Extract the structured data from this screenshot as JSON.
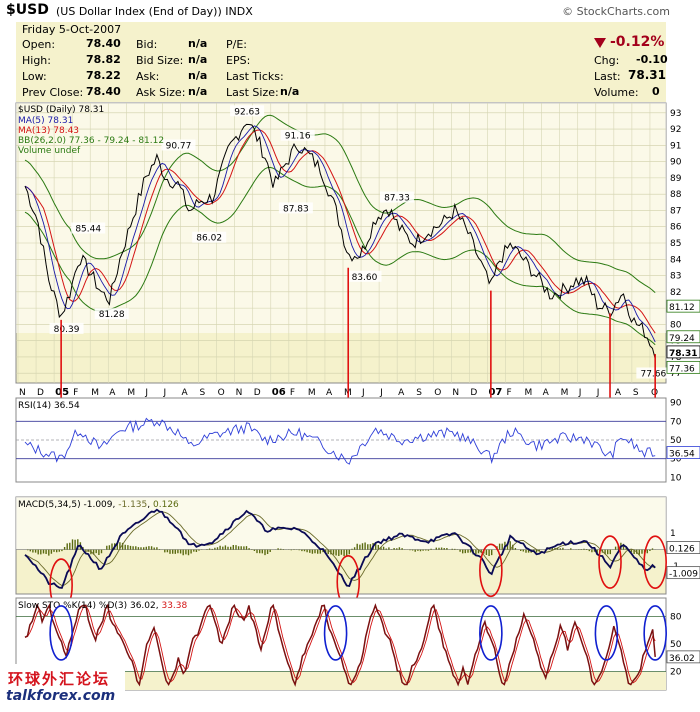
{
  "header": {
    "symbol": "$USD",
    "subtitle": "(US Dollar Index (End of Day))",
    "exchange": "INDX",
    "brand": "© StockCharts.com"
  },
  "quote": {
    "date": "Friday 5-Oct-2007",
    "open_label": "Open:",
    "open": "78.40",
    "high_label": "High:",
    "high": "78.82",
    "low_label": "Low:",
    "low": "78.22",
    "prev_label": "Prev Close:",
    "prev": "78.40",
    "bid_label": "Bid:",
    "bid": "n/a",
    "bidsize_label": "Bid Size:",
    "bidsize": "n/a",
    "ask_label": "Ask:",
    "ask": "n/a",
    "asksize_label": "Ask Size:",
    "asksize": "n/a",
    "pe_label": "P/E:",
    "eps_label": "EPS:",
    "lastticks_label": "Last Ticks:",
    "lastsize_label": "Last Size:",
    "lastsize": "n/a",
    "pct_change": "-0.12%",
    "chg_label": "Chg:",
    "chg": "-0.10",
    "last_label": "Last:",
    "last": "78.31",
    "vol_label": "Volume:",
    "vol": "0"
  },
  "colors": {
    "price_bg": "#f5f2cc",
    "panel_bg": "#f5f2cc",
    "price": "#000000",
    "ma5": "#1a1aa8",
    "ma13": "#d41414",
    "bb": "#2b7a12",
    "rsi": "#2f3fd8",
    "macd": "#0a0a55",
    "macd_sig": "#6b6b2a",
    "hist": "#5a6a10",
    "sto_k": "#7a1010",
    "sto_d": "#d41414",
    "marker": "#e01010",
    "circle_red": "#e01010",
    "circle_blue": "#1020d0"
  },
  "chart_data": {
    "type": "line",
    "legend": {
      "main": "$USD (Daily) 78.31",
      "ma5": "MA(5) 78.31",
      "ma13": "MA(13) 78.43",
      "bb": "BB(26,2.0) 77.36 - 79.24 - 81.12",
      "vol": "Volume undef"
    },
    "y_ticks": [
      "93",
      "92",
      "91",
      "90",
      "89",
      "88",
      "87",
      "86",
      "85",
      "84",
      "83",
      "82",
      "81",
      "80",
      "79",
      "78",
      "77"
    ],
    "ylim": [
      76.4,
      93.6
    ],
    "x_months": [
      {
        "t": "N",
        "i": 0
      },
      {
        "t": "D",
        "i": 1
      },
      {
        "t": "05",
        "i": 2,
        "bold": true
      },
      {
        "t": "F",
        "i": 3
      },
      {
        "t": "M",
        "i": 4
      },
      {
        "t": "A",
        "i": 5
      },
      {
        "t": "M",
        "i": 6
      },
      {
        "t": "J",
        "i": 7
      },
      {
        "t": "J",
        "i": 8
      },
      {
        "t": "A",
        "i": 9
      },
      {
        "t": "S",
        "i": 10
      },
      {
        "t": "O",
        "i": 11
      },
      {
        "t": "N",
        "i": 12
      },
      {
        "t": "D",
        "i": 13
      },
      {
        "t": "06",
        "i": 14,
        "bold": true
      },
      {
        "t": "F",
        "i": 15
      },
      {
        "t": "M",
        "i": 16
      },
      {
        "t": "A",
        "i": 17
      },
      {
        "t": "M",
        "i": 18
      },
      {
        "t": "J",
        "i": 19
      },
      {
        "t": "J",
        "i": 20
      },
      {
        "t": "A",
        "i": 21
      },
      {
        "t": "S",
        "i": 22
      },
      {
        "t": "O",
        "i": 23
      },
      {
        "t": "N",
        "i": 24
      },
      {
        "t": "D",
        "i": 25
      },
      {
        "t": "07",
        "i": 26,
        "bold": true
      },
      {
        "t": "F",
        "i": 27
      },
      {
        "t": "M",
        "i": 28
      },
      {
        "t": "A",
        "i": 29
      },
      {
        "t": "M",
        "i": 30
      },
      {
        "t": "J",
        "i": 31
      },
      {
        "t": "J",
        "i": 32
      },
      {
        "t": "A",
        "i": 33
      },
      {
        "t": "S",
        "i": 34
      },
      {
        "t": "O",
        "i": 35
      }
    ],
    "price_keypoints": [
      [
        0,
        88.5
      ],
      [
        0.7,
        86.4
      ],
      [
        1.3,
        82.8
      ],
      [
        2.0,
        80.5
      ],
      [
        2.5,
        82.0
      ],
      [
        3.0,
        84.2
      ],
      [
        3.6,
        83.2
      ],
      [
        4.2,
        82.0
      ],
      [
        4.7,
        81.5
      ],
      [
        5.3,
        84.2
      ],
      [
        6.0,
        86.7
      ],
      [
        6.7,
        89.1
      ],
      [
        7.3,
        90.2
      ],
      [
        7.8,
        89.0
      ],
      [
        8.5,
        88.6
      ],
      [
        9.1,
        86.9
      ],
      [
        9.7,
        87.6
      ],
      [
        10.4,
        87.8
      ],
      [
        11.3,
        90.8
      ],
      [
        12.3,
        92.6
      ],
      [
        12.8,
        91.6
      ],
      [
        13.3,
        90.3
      ],
      [
        13.8,
        88.5
      ],
      [
        14.4,
        89.8
      ],
      [
        15.1,
        91.1
      ],
      [
        15.8,
        90.3
      ],
      [
        16.4,
        89.5
      ],
      [
        17.2,
        87.1
      ],
      [
        17.9,
        84.3
      ],
      [
        18.6,
        84.3
      ],
      [
        19.4,
        86.5
      ],
      [
        20.1,
        87.2
      ],
      [
        20.8,
        85.8
      ],
      [
        21.5,
        85.0
      ],
      [
        22.3,
        85.7
      ],
      [
        23.1,
        86.2
      ],
      [
        23.8,
        87.0
      ],
      [
        24.5,
        85.7
      ],
      [
        25.3,
        83.6
      ],
      [
        25.8,
        82.2
      ],
      [
        26.3,
        84.0
      ],
      [
        26.9,
        84.9
      ],
      [
        27.6,
        84.0
      ],
      [
        28.3,
        83.0
      ],
      [
        29.1,
        81.8
      ],
      [
        29.8,
        82.1
      ],
      [
        30.5,
        82.7
      ],
      [
        31.1,
        82.6
      ],
      [
        31.7,
        81.2
      ],
      [
        32.4,
        80.8
      ],
      [
        33.1,
        82.0
      ],
      [
        33.7,
        80.2
      ],
      [
        34.3,
        79.6
      ],
      [
        34.9,
        78.31
      ]
    ],
    "price_labels": [
      {
        "v": "92.63",
        "i": 12.3,
        "y": 92.6
      },
      {
        "v": "91.16",
        "i": 15.1,
        "y": 91.1
      },
      {
        "v": "90.77",
        "i": 8.5,
        "y": 90.5
      },
      {
        "v": "87.33",
        "i": 20.6,
        "y": 87.3
      },
      {
        "v": "87.83",
        "i": 15.0,
        "y": 87.8
      },
      {
        "v": "86.02",
        "i": 10.2,
        "y": 86.0
      },
      {
        "v": "85.44",
        "i": 3.5,
        "y": 85.4
      },
      {
        "v": "83.60",
        "i": 18.8,
        "y": 83.6
      },
      {
        "v": "81.28",
        "i": 4.8,
        "y": 81.3
      },
      {
        "v": "80.39",
        "i": 2.3,
        "y": 80.4
      },
      {
        "v": "77.66",
        "i": 34.8,
        "y": 77.66
      }
    ],
    "price_tags": [
      {
        "v": "81.12",
        "y": 81.12
      },
      {
        "v": "79.24",
        "y": 79.24
      },
      {
        "v": "78.31",
        "y": 78.31
      },
      {
        "v": "77.36",
        "y": 77.36
      }
    ],
    "markers": [
      2.0,
      17.9,
      25.8,
      32.4,
      34.9
    ],
    "rsi": {
      "legend": "RSI(14) 36.54",
      "ticks": [
        "90",
        "70",
        "50",
        "30",
        "10"
      ],
      "ylim": [
        5,
        95
      ],
      "levels": [
        70,
        50,
        30
      ],
      "tag": "36.54",
      "keypoints": [
        [
          0,
          45
        ],
        [
          1.3,
          35
        ],
        [
          2.0,
          30
        ],
        [
          3.0,
          62
        ],
        [
          4.2,
          40
        ],
        [
          5.3,
          62
        ],
        [
          6.7,
          68
        ],
        [
          7.3,
          72
        ],
        [
          8.5,
          58
        ],
        [
          9.1,
          43
        ],
        [
          10.4,
          55
        ],
        [
          12.3,
          64
        ],
        [
          13.3,
          50
        ],
        [
          15.1,
          58
        ],
        [
          16.4,
          46
        ],
        [
          17.9,
          27
        ],
        [
          19.4,
          62
        ],
        [
          20.8,
          50
        ],
        [
          22.3,
          55
        ],
        [
          23.8,
          58
        ],
        [
          25.3,
          40
        ],
        [
          25.8,
          30
        ],
        [
          26.9,
          60
        ],
        [
          28.3,
          44
        ],
        [
          29.8,
          52
        ],
        [
          31.1,
          52
        ],
        [
          32.4,
          32
        ],
        [
          33.1,
          54
        ],
        [
          34.3,
          35
        ],
        [
          34.9,
          36.54
        ]
      ]
    },
    "macd": {
      "legend": "MACD(5,34,5)",
      "legend_macd": "-1.009",
      "legend_sig": "-1.135",
      "legend_hist": "0.126",
      "ticks": [
        "1",
        "0",
        "-1"
      ],
      "ylim": [
        -2.7,
        3.2
      ],
      "tags": [
        {
          "v": "0.126",
          "y": 0.126
        },
        {
          "v": "-1.009",
          "y": -1.4
        }
      ],
      "keypoints": [
        [
          0,
          -0.2
        ],
        [
          1.3,
          -2.0
        ],
        [
          2.0,
          -2.4
        ],
        [
          3.0,
          0.3
        ],
        [
          4.2,
          -1.2
        ],
        [
          5.3,
          0.8
        ],
        [
          6.7,
          2.0
        ],
        [
          7.3,
          2.5
        ],
        [
          8.5,
          1.3
        ],
        [
          9.1,
          0.2
        ],
        [
          10.4,
          0.5
        ],
        [
          12.3,
          2.4
        ],
        [
          13.3,
          1.2
        ],
        [
          15.1,
          1.3
        ],
        [
          16.4,
          0.1
        ],
        [
          17.9,
          -2.2
        ],
        [
          19.4,
          0.4
        ],
        [
          20.8,
          0.9
        ],
        [
          22.3,
          0.5
        ],
        [
          23.8,
          1.0
        ],
        [
          25.3,
          -0.6
        ],
        [
          25.8,
          -1.5
        ],
        [
          26.9,
          0.8
        ],
        [
          28.3,
          -0.3
        ],
        [
          29.8,
          0.4
        ],
        [
          31.1,
          0.5
        ],
        [
          32.4,
          -1.0
        ],
        [
          33.1,
          0.3
        ],
        [
          34.3,
          -1.2
        ],
        [
          34.9,
          -1.009
        ]
      ],
      "circles": [
        2.0,
        17.9,
        25.8,
        32.4,
        34.9
      ]
    },
    "sto": {
      "legend": "Slow STO %K(14) %D(3)",
      "legend_k": "36.02",
      "legend_d": "33.38",
      "ticks": [
        "80",
        "50",
        "20"
      ],
      "ylim": [
        0,
        100
      ],
      "levels": [
        80,
        20
      ],
      "tag": "36.02",
      "circles": [
        2.0,
        17.2,
        25.8,
        32.2,
        34.9
      ]
    }
  },
  "watermark": {
    "line1": "环球外汇论坛",
    "line2": "talkforex.com"
  }
}
